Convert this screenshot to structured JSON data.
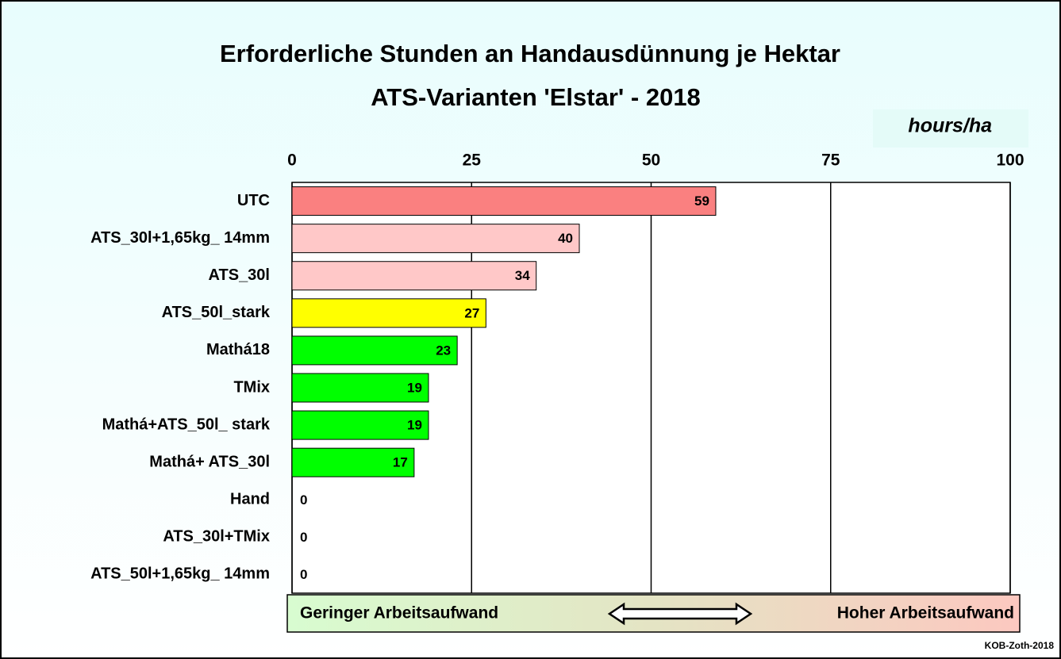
{
  "chart_data": {
    "type": "bar",
    "orientation": "horizontal",
    "title": "Erforderliche Stunden an Handausdünnung je Hektar",
    "subtitle": "ATS-Varianten  'Elstar'  -  2018",
    "unit_label": "hours/ha",
    "categories": [
      "UTC",
      "ATS_30l+1,65kg_ 14mm",
      "ATS_30l",
      "ATS_50l_stark",
      "Mathá18",
      "TMix",
      "Mathá+ATS_50l_ stark",
      "Mathá+ ATS_30l",
      "Hand",
      "ATS_30l+TMix",
      "ATS_50l+1,65kg_ 14mm"
    ],
    "values": [
      59,
      40,
      34,
      27,
      23,
      19,
      19,
      17,
      0,
      0,
      0
    ],
    "colors": [
      "#fa8080",
      "#ffc8c8",
      "#ffc8c8",
      "#ffff00",
      "#00ff00",
      "#00ff00",
      "#00ff00",
      "#00ff00",
      "#00ff00",
      "#00ff00",
      "#00ff00"
    ],
    "xlim": [
      0,
      100
    ],
    "xticks": [
      0,
      25,
      50,
      75,
      100
    ],
    "grid": true,
    "annotations": [
      "Geringer  Arbeitsaufwand",
      "Hoher Arbeitsaufwand"
    ],
    "source": "KOB-Zoth-2018"
  }
}
